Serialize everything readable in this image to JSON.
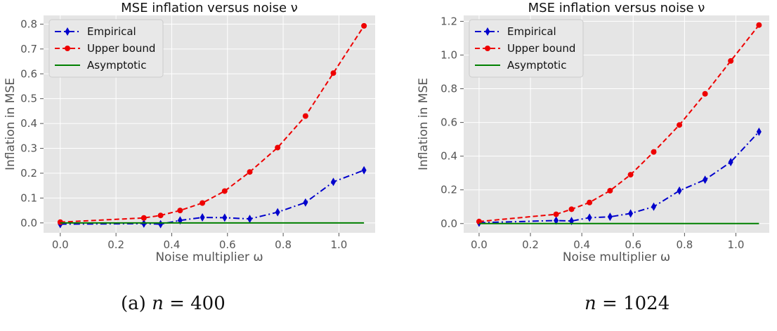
{
  "chart_data": [
    {
      "type": "line",
      "title": "MSE inflation versus noise ν",
      "xlabel": "Noise multiplier ω",
      "ylabel": "Inflation in MSE",
      "xlim": [
        -0.06,
        1.13
      ],
      "ylim": [
        -0.04,
        0.835
      ],
      "xticks": [
        0.0,
        0.2,
        0.4,
        0.6,
        0.8,
        1.0
      ],
      "xtick_labels": [
        "0.0",
        "0.2",
        "0.4",
        "0.6",
        "0.8",
        "1.0"
      ],
      "yticks": [
        0.0,
        0.1,
        0.2,
        0.3,
        0.4,
        0.5,
        0.6,
        0.7,
        0.8
      ],
      "ytick_labels": [
        "0.0",
        "0.1",
        "0.2",
        "0.3",
        "0.4",
        "0.5",
        "0.6",
        "0.7",
        "0.8"
      ],
      "grid": true,
      "legend": "top-left",
      "series": [
        {
          "name": "Empirical",
          "color": "#0000cc",
          "dash": "dashdot",
          "marker": "diamond",
          "x": [
            0.0,
            0.3,
            0.36,
            0.43,
            0.51,
            0.59,
            0.68,
            0.78,
            0.88,
            0.98,
            1.09
          ],
          "y": [
            -0.005,
            -0.003,
            -0.005,
            0.01,
            0.022,
            0.021,
            0.016,
            0.043,
            0.082,
            0.165,
            0.212
          ]
        },
        {
          "name": "Upper bound",
          "color": "#ee0000",
          "dash": "dashed",
          "marker": "circle",
          "x": [
            0.0,
            0.3,
            0.36,
            0.43,
            0.51,
            0.59,
            0.68,
            0.78,
            0.88,
            0.98,
            1.09
          ],
          "y": [
            0.003,
            0.02,
            0.03,
            0.05,
            0.08,
            0.128,
            0.205,
            0.303,
            0.43,
            0.603,
            0.793
          ]
        },
        {
          "name": "Asymptotic",
          "color": "#008000",
          "dash": "solid",
          "marker": "none",
          "x": [
            0.0,
            1.09
          ],
          "y": [
            0.0,
            0.0
          ]
        }
      ]
    },
    {
      "type": "line",
      "title": "MSE inflation versus noise ν",
      "xlabel": "Noise multiplier ω",
      "ylabel": "Inflation in MSE",
      "xlim": [
        -0.06,
        1.13
      ],
      "ylim": [
        -0.055,
        1.235
      ],
      "xticks": [
        0.0,
        0.2,
        0.4,
        0.6,
        0.8,
        1.0
      ],
      "xtick_labels": [
        "0.0",
        "0.2",
        "0.4",
        "0.6",
        "0.8",
        "1.0"
      ],
      "yticks": [
        0.0,
        0.2,
        0.4,
        0.6,
        0.8,
        1.0,
        1.2
      ],
      "ytick_labels": [
        "0.0",
        "0.2",
        "0.4",
        "0.6",
        "0.8",
        "1.0",
        "1.2"
      ],
      "grid": true,
      "legend": "top-left",
      "series": [
        {
          "name": "Empirical",
          "color": "#0000cc",
          "dash": "dashdot",
          "marker": "diamond",
          "x": [
            0.0,
            0.3,
            0.36,
            0.43,
            0.51,
            0.59,
            0.68,
            0.78,
            0.88,
            0.98,
            1.09
          ],
          "y": [
            0.005,
            0.018,
            0.015,
            0.035,
            0.04,
            0.06,
            0.1,
            0.195,
            0.26,
            0.365,
            0.545
          ]
        },
        {
          "name": "Upper bound",
          "color": "#ee0000",
          "dash": "dashed",
          "marker": "circle",
          "x": [
            0.0,
            0.3,
            0.36,
            0.43,
            0.51,
            0.59,
            0.68,
            0.78,
            0.88,
            0.98,
            1.09
          ],
          "y": [
            0.012,
            0.055,
            0.085,
            0.125,
            0.195,
            0.29,
            0.425,
            0.585,
            0.77,
            0.965,
            1.178
          ]
        },
        {
          "name": "Asymptotic",
          "color": "#008000",
          "dash": "solid",
          "marker": "none",
          "x": [
            0.0,
            1.09
          ],
          "y": [
            0.0,
            0.0
          ]
        }
      ]
    }
  ],
  "captions": [
    {
      "prefix": "(a) ",
      "var": "n",
      "rest": " = 400"
    },
    {
      "prefix": "",
      "var": "n",
      "rest": " = 1024"
    }
  ]
}
